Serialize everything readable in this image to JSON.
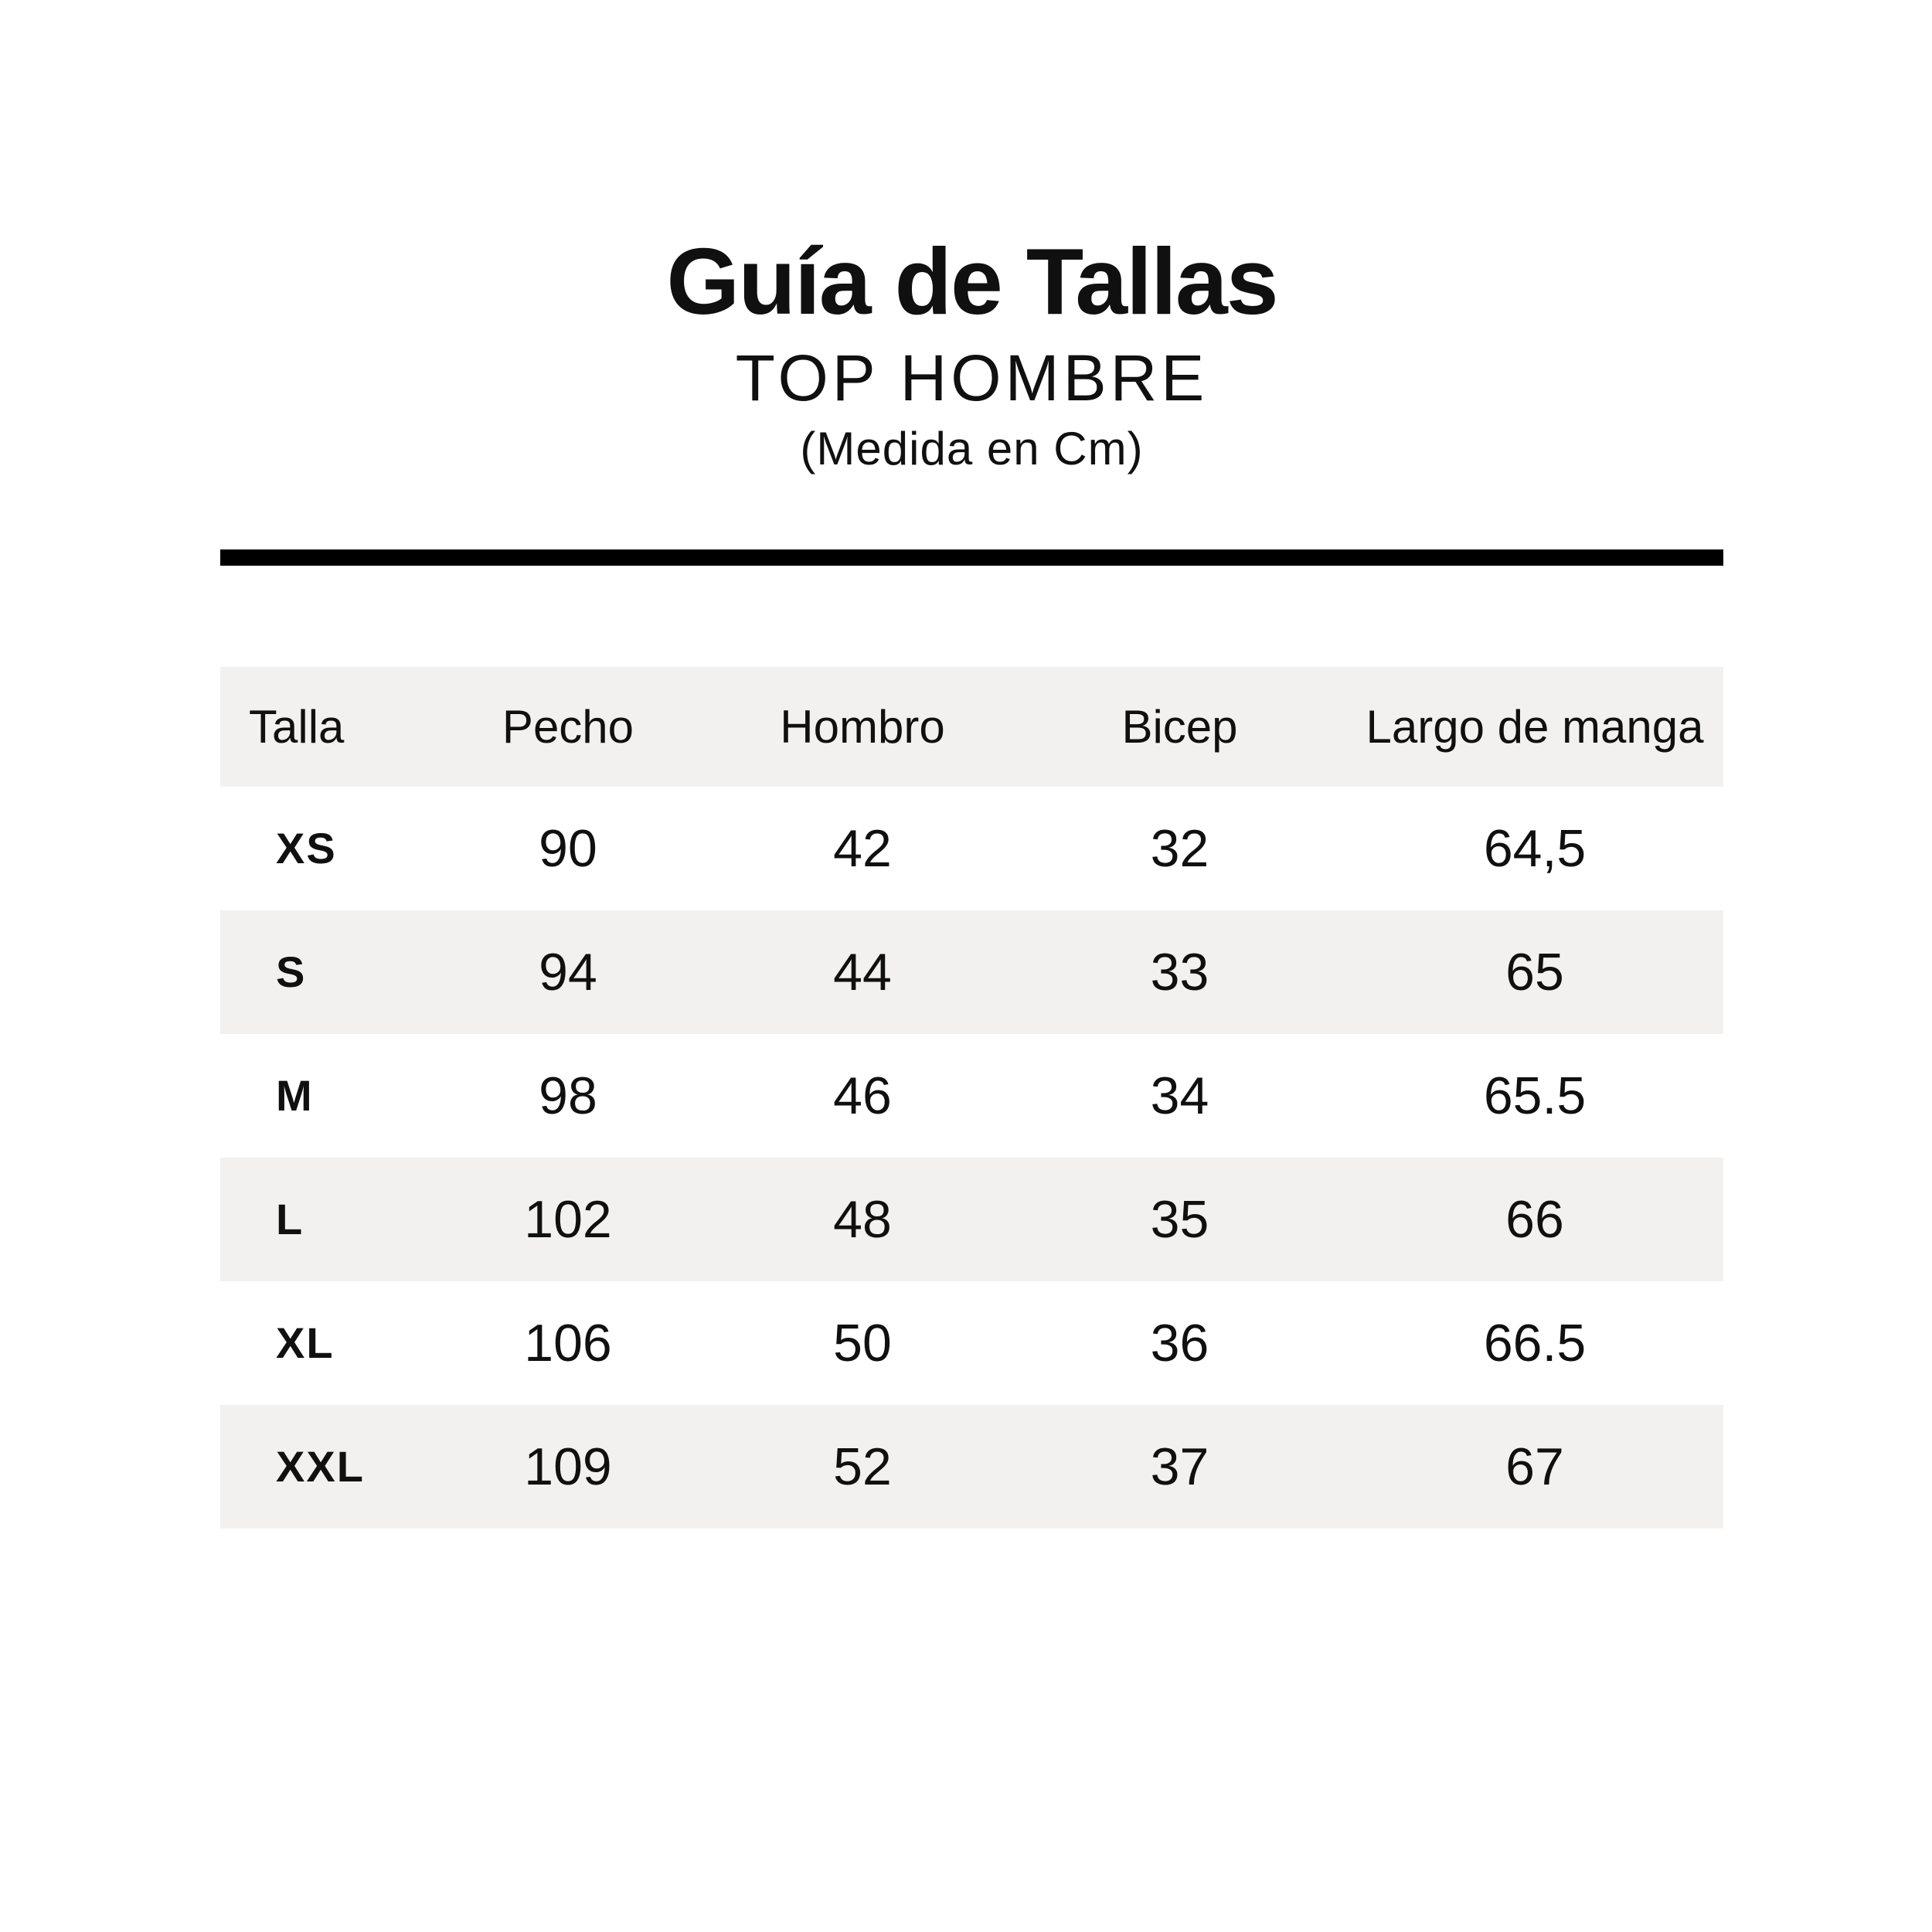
{
  "page": {
    "title": "Guía de Tallas",
    "subtitle": "TOP HOMBRE",
    "unit_note": "(Medida en Cm)"
  },
  "colors": {
    "background": "#ffffff",
    "row_stripe": "#f2f1ef",
    "divider": "#000000",
    "text": "#101010"
  },
  "table": {
    "columns": [
      "Talla",
      "Pecho",
      "Hombro",
      "Bicep",
      "Largo de manga"
    ],
    "rows": [
      {
        "size": "XS",
        "pecho": "90",
        "hombro": "42",
        "bicep": "32",
        "largo": "64,5"
      },
      {
        "size": "S",
        "pecho": "94",
        "hombro": "44",
        "bicep": "33",
        "largo": "65"
      },
      {
        "size": "M",
        "pecho": "98",
        "hombro": "46",
        "bicep": "34",
        "largo": "65.5"
      },
      {
        "size": "L",
        "pecho": "102",
        "hombro": "48",
        "bicep": "35",
        "largo": "66"
      },
      {
        "size": "XL",
        "pecho": "106",
        "hombro": "50",
        "bicep": "36",
        "largo": "66.5"
      },
      {
        "size": "XXL",
        "pecho": "109",
        "hombro": "52",
        "bicep": "37",
        "largo": "67"
      }
    ]
  },
  "chart_data": {
    "type": "table",
    "title": "Guía de Tallas",
    "subtitle": "TOP HOMBRE (Medida en Cm)",
    "columns": [
      "Talla",
      "Pecho",
      "Hombro",
      "Bicep",
      "Largo de manga"
    ],
    "rows": [
      [
        "XS",
        90,
        42,
        32,
        64.5
      ],
      [
        "S",
        94,
        44,
        33,
        65
      ],
      [
        "M",
        98,
        46,
        34,
        65.5
      ],
      [
        "L",
        102,
        48,
        35,
        66
      ],
      [
        "XL",
        106,
        50,
        36,
        66.5
      ],
      [
        "XXL",
        109,
        52,
        37,
        67
      ]
    ],
    "units": "cm"
  }
}
